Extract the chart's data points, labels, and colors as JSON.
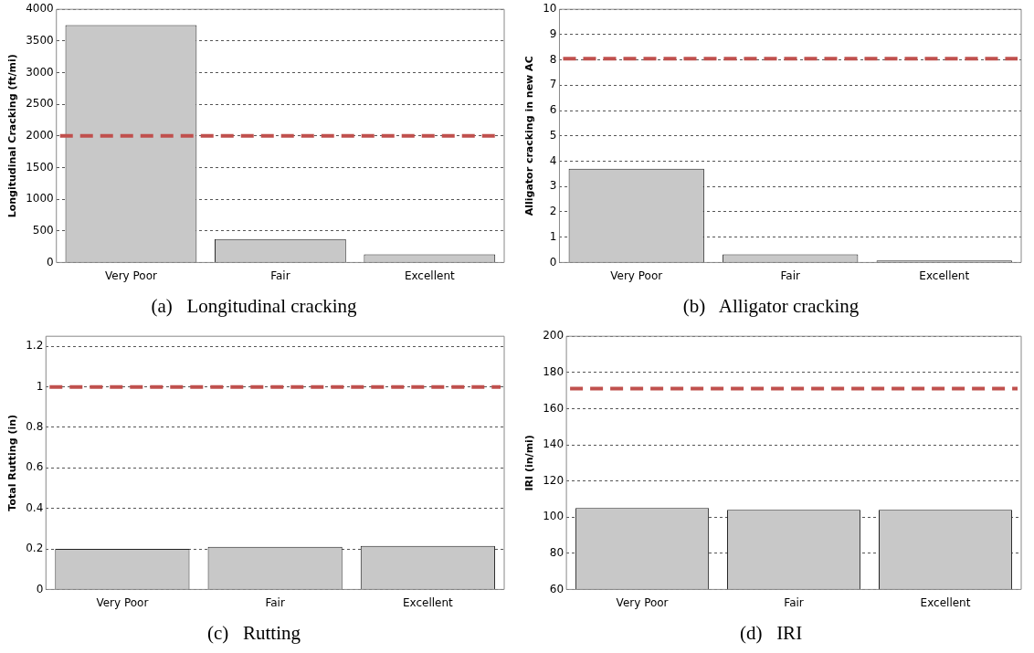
{
  "chart_data": [
    {
      "type": "bar",
      "title": "(a)   Longitudinal cracking",
      "ylabel": "Longitudinal Cracking (ft/mi)",
      "categories": [
        "Very Poor",
        "Fair",
        "Excellent"
      ],
      "values": [
        3750,
        370,
        130
      ],
      "color": "#c8c8c8",
      "ylim": [
        0,
        4000
      ],
      "yticks": [
        0,
        500,
        1000,
        1500,
        2000,
        2500,
        3000,
        3500,
        4000
      ],
      "grid": "y",
      "legend": false,
      "ref_lines": [
        {
          "axis": "y",
          "value": 2000,
          "color": "#c0504d",
          "line_style": "dashed"
        }
      ]
    },
    {
      "type": "bar",
      "title": "(b)   Alligator cracking",
      "ylabel": "Alligator cracking in new AC",
      "categories": [
        "Very Poor",
        "Fair",
        "Excellent"
      ],
      "values": [
        3.7,
        0.32,
        0.08
      ],
      "color": "#c8c8c8",
      "ylim": [
        0,
        10
      ],
      "yticks": [
        0,
        1,
        2,
        3,
        4,
        5,
        6,
        7,
        8,
        9,
        10
      ],
      "grid": "y",
      "legend": false,
      "ref_lines": [
        {
          "axis": "y",
          "value": 8.05,
          "color": "#c0504d",
          "line_style": "dashed"
        }
      ]
    },
    {
      "type": "bar",
      "title": "(c)   Rutting",
      "ylabel": "Total Rutting (in)",
      "categories": [
        "Very Poor",
        "Fair",
        "Excellent"
      ],
      "values": [
        0.2,
        0.21,
        0.215
      ],
      "color": "#c8c8c8",
      "ylim": [
        0,
        1.25
      ],
      "yticks": [
        0,
        0.2,
        0.4,
        0.6,
        0.8,
        1,
        1.2
      ],
      "grid": "y",
      "legend": false,
      "ref_lines": [
        {
          "axis": "y",
          "value": 1,
          "color": "#c0504d",
          "line_style": "dashed"
        }
      ]
    },
    {
      "type": "bar",
      "title": "(d)   IRI",
      "ylabel": "IRI (in/mi)",
      "categories": [
        "Very Poor",
        "Fair",
        "Excellent"
      ],
      "values": [
        105,
        104,
        104
      ],
      "color": "#c8c8c8",
      "ylim": [
        60,
        200
      ],
      "yticks": [
        60,
        80,
        100,
        120,
        140,
        160,
        180,
        200
      ],
      "grid": "y",
      "legend": false,
      "ref_lines": [
        {
          "axis": "y",
          "value": 171,
          "color": "#c0504d",
          "line_style": "dashed"
        }
      ]
    }
  ]
}
